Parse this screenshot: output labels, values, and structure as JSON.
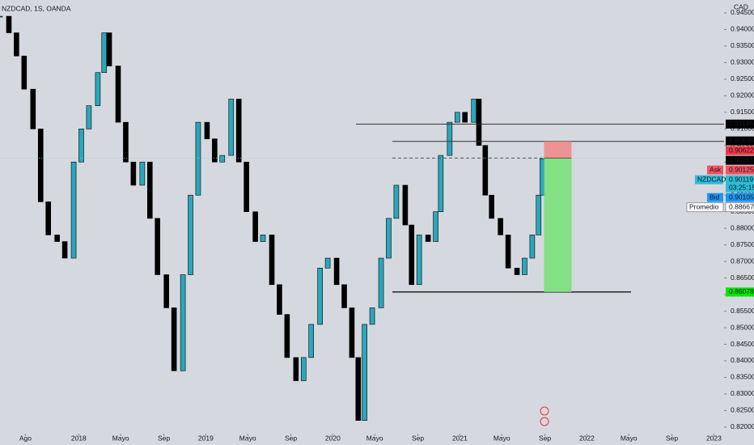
{
  "chart_data": {
    "type": "candlestick",
    "title": "NZDCAD, 1S, OANDA",
    "currency": "CAD",
    "x": [
      2017.38,
      2017.45,
      2017.51,
      2017.57,
      2017.64,
      2017.7,
      2017.76,
      2017.83,
      2017.89,
      2017.96,
      2018.02,
      2018.08,
      2018.15,
      2018.2,
      2018.24,
      2018.31,
      2018.37,
      2018.43,
      2018.5,
      2018.56,
      2018.62,
      2018.69,
      2018.75,
      2018.82,
      2018.88,
      2018.94,
      2019.01,
      2019.07,
      2019.13,
      2019.2,
      2019.26,
      2019.32,
      2019.39,
      2019.45,
      2019.52,
      2019.58,
      2019.64,
      2019.71,
      2019.77,
      2019.83,
      2019.9,
      2019.96,
      2020.03,
      2020.09,
      2020.15,
      2020.2,
      2020.25,
      2020.31,
      2020.38,
      2020.44,
      2020.5,
      2020.57,
      2020.62,
      2020.68,
      2020.75,
      2020.81,
      2020.85,
      2020.92,
      2020.98,
      2021.04,
      2021.11,
      2021.15,
      2021.2,
      2021.25,
      2021.32,
      2021.38,
      2021.45,
      2021.51,
      2021.57,
      2021.62,
      2021.65
    ],
    "series": [
      {
        "name": "NZDCAD",
        "up_color": "#2aa7bb",
        "down_color": "#000000",
        "values": [
          0.944,
          0.939,
          0.932,
          0.922,
          0.91,
          0.888,
          0.878,
          0.876,
          0.871,
          0.9,
          0.91,
          0.917,
          0.927,
          0.939,
          0.929,
          0.912,
          0.9,
          0.893,
          0.9,
          0.883,
          0.866,
          0.856,
          0.837,
          0.866,
          0.89,
          0.912,
          0.907,
          0.9,
          0.902,
          0.919,
          0.9,
          0.885,
          0.876,
          0.878,
          0.863,
          0.854,
          0.841,
          0.834,
          0.841,
          0.851,
          0.868,
          0.871,
          0.863,
          0.856,
          0.841,
          0.822,
          0.851,
          0.856,
          0.871,
          0.883,
          0.893,
          0.881,
          0.863,
          0.878,
          0.876,
          0.885,
          0.902,
          0.912,
          0.915,
          0.912,
          0.919,
          0.905,
          0.89,
          0.883,
          0.878,
          0.868,
          0.866,
          0.871,
          0.878,
          0.89,
          0.901
        ]
      }
    ],
    "xlim": [
      2017.38,
      2023.08
    ],
    "xticks": [
      {
        "value": 2017.58,
        "label": "Ago"
      },
      {
        "value": 2018,
        "label": "2018"
      },
      {
        "value": 2018.33,
        "label": "Mayo"
      },
      {
        "value": 2018.67,
        "label": "Sep"
      },
      {
        "value": 2019,
        "label": "2019"
      },
      {
        "value": 2019.33,
        "label": "Mayo"
      },
      {
        "value": 2019.67,
        "label": "Sep"
      },
      {
        "value": 2020,
        "label": "2020"
      },
      {
        "value": 2020.33,
        "label": "Mayo"
      },
      {
        "value": 2020.67,
        "label": "Sep"
      },
      {
        "value": 2021,
        "label": "2021"
      },
      {
        "value": 2021.33,
        "label": "Mayo"
      },
      {
        "value": 2021.67,
        "label": "Sep"
      },
      {
        "value": 2022,
        "label": "2022"
      },
      {
        "value": 2022.33,
        "label": "Mayo"
      },
      {
        "value": 2022.67,
        "label": "Sep"
      },
      {
        "value": 2023,
        "label": "2023"
      }
    ],
    "ylim": [
      0.8146,
      0.9489
    ],
    "yticks": [
      {
        "value": 0.82,
        "label": "0.82000"
      },
      {
        "value": 0.825,
        "label": "0.82500"
      },
      {
        "value": 0.83,
        "label": "0.83000"
      },
      {
        "value": 0.835,
        "label": "0.83500"
      },
      {
        "value": 0.84,
        "label": "0.84000"
      },
      {
        "value": 0.845,
        "label": "0.84500"
      },
      {
        "value": 0.85,
        "label": "0.85000"
      },
      {
        "value": 0.855,
        "label": "0.85500"
      },
      {
        "value": 0.86,
        "label": "0.86000"
      },
      {
        "value": 0.865,
        "label": "0.86500"
      },
      {
        "value": 0.87,
        "label": "0.87000"
      },
      {
        "value": 0.875,
        "label": "0.87500"
      },
      {
        "value": 0.88,
        "label": "0.88000"
      },
      {
        "value": 0.885,
        "label": "0.88500"
      },
      {
        "value": 0.89,
        "label": "0.89000"
      },
      {
        "value": 0.895,
        "label": "0.89500"
      },
      {
        "value": 0.9,
        "label": "0.90000"
      },
      {
        "value": 0.905,
        "label": "0.90500"
      },
      {
        "value": 0.91,
        "label": "0.91000"
      },
      {
        "value": 0.915,
        "label": "0.91500"
      },
      {
        "value": 0.92,
        "label": "0.92000"
      },
      {
        "value": 0.925,
        "label": "0.92500"
      },
      {
        "value": 0.93,
        "label": "0.93000"
      },
      {
        "value": 0.935,
        "label": "0.93500"
      },
      {
        "value": 0.94,
        "label": "0.94000"
      },
      {
        "value": 0.945,
        "label": "0.94500"
      }
    ],
    "price_labels": [
      {
        "value": 0.91146,
        "color": "#000000"
      },
      {
        "value": 0.90638,
        "color": "#000000"
      },
      {
        "value": 0.90622,
        "color": "#f23645"
      },
      {
        "value": 0.90151,
        "color": "#000000"
      },
      {
        "name": "Ask",
        "value": 0.90125,
        "color": "#f7525f"
      },
      {
        "name": "NZDCAD",
        "value": 0.90119,
        "color": "#2ebcd6",
        "countdown": "03:25:15"
      },
      {
        "name": "Bid",
        "value": 0.90105,
        "color": "#2196f3"
      },
      {
        "name": "Promedio",
        "value": 0.88667,
        "color": "#ffffff"
      },
      {
        "value": 0.86078,
        "color": "#00e600"
      }
    ]
  }
}
